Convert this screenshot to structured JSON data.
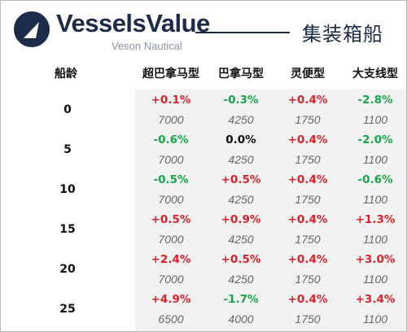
{
  "brand": {
    "name": "VesselsValue",
    "tagline": "Veson Nautical"
  },
  "page_title": "集装箱船",
  "table": {
    "age_header": "船龄",
    "columns": [
      "超巴拿马型",
      "巴拿马型",
      "灵便型",
      "大支线型"
    ],
    "rows": [
      {
        "age": "0",
        "changes": [
          "+0.1%",
          "-0.3%",
          "+0.4%",
          "-2.8%"
        ],
        "values": [
          "7000",
          "4250",
          "1750",
          "1100"
        ]
      },
      {
        "age": "5",
        "changes": [
          "-0.6%",
          "0.0%",
          "+0.4%",
          "-2.0%"
        ],
        "values": [
          "7000",
          "4250",
          "1750",
          "1100"
        ]
      },
      {
        "age": "10",
        "changes": [
          "-0.5%",
          "+0.5%",
          "+0.4%",
          "-0.6%"
        ],
        "values": [
          "7000",
          "4250",
          "1750",
          "1100"
        ]
      },
      {
        "age": "15",
        "changes": [
          "+0.5%",
          "+0.9%",
          "+0.4%",
          "+1.3%"
        ],
        "values": [
          "7000",
          "4250",
          "1750",
          "1100"
        ]
      },
      {
        "age": "20",
        "changes": [
          "+2.4%",
          "+0.5%",
          "+0.4%",
          "+3.0%"
        ],
        "values": [
          "7000",
          "4250",
          "1750",
          "1100"
        ]
      },
      {
        "age": "25",
        "changes": [
          "+4.9%",
          "-1.7%",
          "+0.4%",
          "+3.4%"
        ],
        "values": [
          "6500",
          "4000",
          "1750",
          "1100"
        ]
      }
    ]
  },
  "colors": {
    "brand_navy": "#1c2b4a",
    "positive": "#e0202a",
    "negative": "#1aa64b",
    "shade": "#f2f2f2"
  },
  "icons": {
    "logo": "vesselsvalue-logo-icon"
  }
}
